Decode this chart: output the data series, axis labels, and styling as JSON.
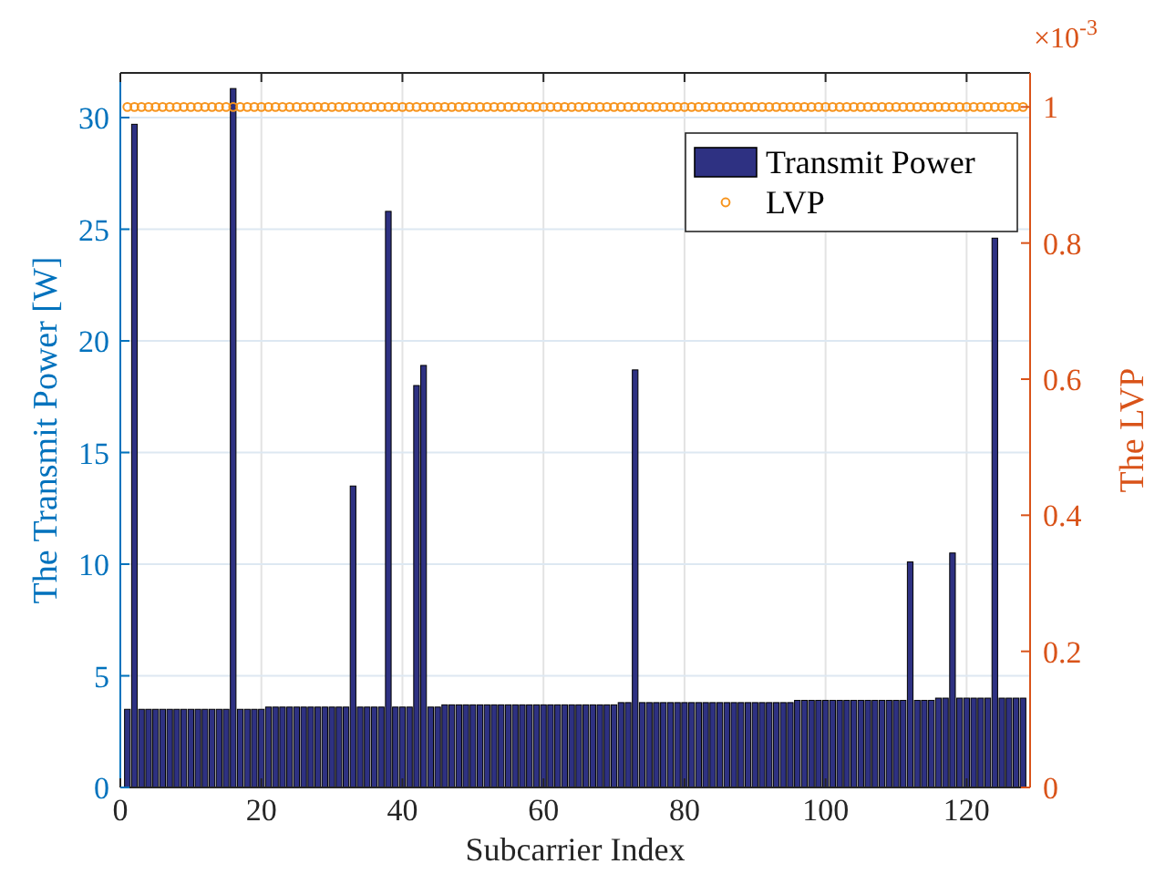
{
  "chart_data": {
    "type": "bar",
    "xlabel": "Subcarrier Index",
    "ylabel": "The Transmit Power [W]",
    "y2label": "The LVP",
    "annotations": [
      "×10$^{-3}$"
    ],
    "x": [
      1,
      2,
      3,
      4,
      5,
      6,
      7,
      8,
      9,
      10,
      11,
      12,
      13,
      14,
      15,
      16,
      17,
      18,
      19,
      20,
      21,
      22,
      23,
      24,
      25,
      26,
      27,
      28,
      29,
      30,
      31,
      32,
      33,
      34,
      35,
      36,
      37,
      38,
      39,
      40,
      41,
      42,
      43,
      44,
      45,
      46,
      47,
      48,
      49,
      50,
      51,
      52,
      53,
      54,
      55,
      56,
      57,
      58,
      59,
      60,
      61,
      62,
      63,
      64,
      65,
      66,
      67,
      68,
      69,
      70,
      71,
      72,
      73,
      74,
      75,
      76,
      77,
      78,
      79,
      80,
      81,
      82,
      83,
      84,
      85,
      86,
      87,
      88,
      89,
      90,
      91,
      92,
      93,
      94,
      95,
      96,
      97,
      98,
      99,
      100,
      101,
      102,
      103,
      104,
      105,
      106,
      107,
      108,
      109,
      110,
      111,
      112,
      113,
      114,
      115,
      116,
      117,
      118,
      119,
      120,
      121,
      122,
      123,
      124,
      125,
      126,
      127,
      128
    ],
    "series": [
      {
        "name": "Transmit Power",
        "type": "bar",
        "color": "#2e3182",
        "values": [
          3.5,
          29.7,
          3.5,
          3.5,
          3.5,
          3.5,
          3.5,
          3.5,
          3.5,
          3.5,
          3.5,
          3.5,
          3.5,
          3.5,
          3.5,
          31.3,
          3.5,
          3.5,
          3.5,
          3.5,
          3.6,
          3.6,
          3.6,
          3.6,
          3.6,
          3.6,
          3.6,
          3.6,
          3.6,
          3.6,
          3.6,
          3.6,
          13.5,
          3.6,
          3.6,
          3.6,
          3.6,
          25.8,
          3.6,
          3.6,
          3.6,
          18.0,
          18.9,
          3.6,
          3.6,
          3.7,
          3.7,
          3.7,
          3.7,
          3.7,
          3.7,
          3.7,
          3.7,
          3.7,
          3.7,
          3.7,
          3.7,
          3.7,
          3.7,
          3.7,
          3.7,
          3.7,
          3.7,
          3.7,
          3.7,
          3.7,
          3.7,
          3.7,
          3.7,
          3.7,
          3.8,
          3.8,
          18.7,
          3.8,
          3.8,
          3.8,
          3.8,
          3.8,
          3.8,
          3.8,
          3.8,
          3.8,
          3.8,
          3.8,
          3.8,
          3.8,
          3.8,
          3.8,
          3.8,
          3.8,
          3.8,
          3.8,
          3.8,
          3.8,
          3.8,
          3.9,
          3.9,
          3.9,
          3.9,
          3.9,
          3.9,
          3.9,
          3.9,
          3.9,
          3.9,
          3.9,
          3.9,
          3.9,
          3.9,
          3.9,
          3.9,
          10.1,
          3.9,
          3.9,
          3.9,
          4.0,
          4.0,
          10.5,
          4.0,
          4.0,
          4.0,
          4.0,
          4.0,
          24.6,
          4.0,
          4.0,
          4.0,
          4.0
        ]
      },
      {
        "name": "LVP",
        "type": "scatter",
        "axis": "y2",
        "marker": "circle",
        "color": "#f7941d",
        "values": [
          1,
          1,
          1,
          1,
          1,
          1,
          1,
          1,
          1,
          1,
          1,
          1,
          1,
          1,
          1,
          1,
          1,
          1,
          1,
          1,
          1,
          1,
          1,
          1,
          1,
          1,
          1,
          1,
          1,
          1,
          1,
          1,
          1,
          1,
          1,
          1,
          1,
          1,
          1,
          1,
          1,
          1,
          1,
          1,
          1,
          1,
          1,
          1,
          1,
          1,
          1,
          1,
          1,
          1,
          1,
          1,
          1,
          1,
          1,
          1,
          1,
          1,
          1,
          1,
          1,
          1,
          1,
          1,
          1,
          1,
          1,
          1,
          1,
          1,
          1,
          1,
          1,
          1,
          1,
          1,
          1,
          1,
          1,
          1,
          1,
          1,
          1,
          1,
          1,
          1,
          1,
          1,
          1,
          1,
          1,
          1,
          1,
          1,
          1,
          1,
          1,
          1,
          1,
          1,
          1,
          1,
          1,
          1,
          1,
          1,
          1,
          1,
          1,
          1,
          1,
          1,
          1,
          1,
          1,
          1,
          1,
          1,
          1,
          1,
          1,
          1,
          1,
          1
        ]
      }
    ],
    "xlim": [
      0,
      129
    ],
    "xticks": [
      0,
      20,
      40,
      60,
      80,
      100,
      120
    ],
    "ylim": [
      0,
      32
    ],
    "yticks": [
      0,
      5,
      10,
      15,
      20,
      25,
      30
    ],
    "y2lim": [
      0,
      1.05
    ],
    "y2ticks": [
      0,
      0.2,
      0.4,
      0.6,
      0.8,
      1
    ],
    "grid": true,
    "legend": "top right"
  }
}
